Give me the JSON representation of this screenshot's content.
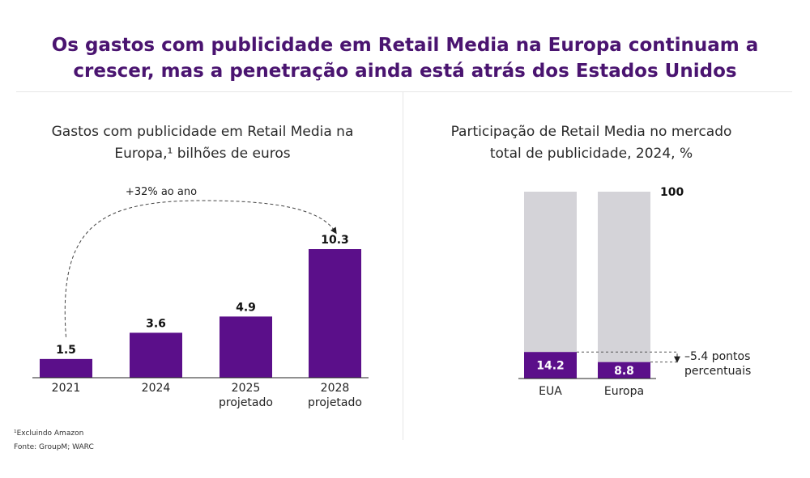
{
  "title_line1": "Os gastos com publicidade em Retail Media na Europa continuam a",
  "title_line2": "crescer, mas a penetração ainda está atrás dos Estados Unidos",
  "footnote": "¹Excluindo Amazon",
  "source": "Fonte: GroupM; WARC",
  "colors": {
    "purple": "#5b0f8a",
    "gray": "#d4d3d8",
    "title": "#4a1470"
  },
  "chart_data": [
    {
      "type": "bar",
      "title_line1": "Gastos com publicidade em Retail Media na",
      "title_line2": "Europa,¹ bilhões de euros",
      "categories": [
        {
          "line1": "2021",
          "line2": ""
        },
        {
          "line1": "2024",
          "line2": ""
        },
        {
          "line1": "2025",
          "line2": "projetado"
        },
        {
          "line1": "2028",
          "line2": "projetado"
        }
      ],
      "values": [
        1.5,
        3.6,
        4.9,
        10.3
      ],
      "value_labels": [
        "1.5",
        "3.6",
        "4.9",
        "10.3"
      ],
      "annotation": "+32% ao ano",
      "ylim": [
        0,
        10.3
      ]
    },
    {
      "type": "bar",
      "stacked": true,
      "title_line1": "Participação de Retail Media no mercado",
      "title_line2": "total de publicidade, 2024, %",
      "categories": [
        "EUA",
        "Europa"
      ],
      "values": [
        14.2,
        8.8
      ],
      "value_labels": [
        "14.2",
        "8.8"
      ],
      "total": 100,
      "total_label": "100",
      "gap_label_line1": "–5.4 pontos",
      "gap_label_line2": "percentuais",
      "ylim": [
        0,
        100
      ]
    }
  ]
}
